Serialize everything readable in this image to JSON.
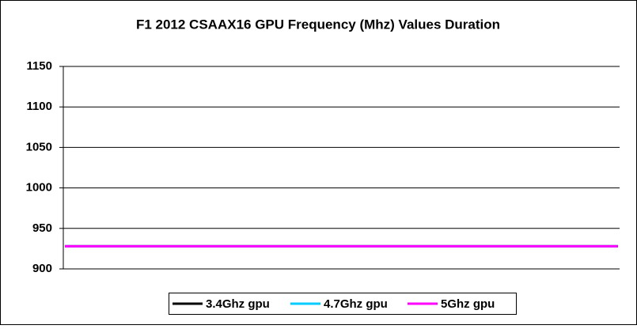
{
  "chart_data": {
    "type": "line",
    "title": "F1 2012 CSAAX16 GPU Frequency (Mhz) Values Duration",
    "categories": [
      null,
      null,
      null,
      null,
      null,
      null,
      null,
      null,
      null,
      null
    ],
    "series": [
      {
        "name": "3.4Ghz gpu",
        "color": "#000000",
        "values": [
          928,
          928,
          928,
          928,
          928,
          928,
          928,
          928,
          928,
          928
        ]
      },
      {
        "name": "4.7Ghz gpu",
        "color": "#00ccff",
        "values": [
          928,
          928,
          928,
          928,
          928,
          928,
          928,
          928,
          928,
          928
        ]
      },
      {
        "name": "5Ghz gpu",
        "color": "#ff00ff",
        "values": [
          928,
          928,
          928,
          928,
          928,
          928,
          928,
          928,
          928,
          928
        ]
      }
    ],
    "ylim": [
      900,
      1150
    ],
    "yticks": [
      900,
      950,
      1000,
      1050,
      1100,
      1150
    ],
    "grid": true,
    "legend": "bottom"
  }
}
